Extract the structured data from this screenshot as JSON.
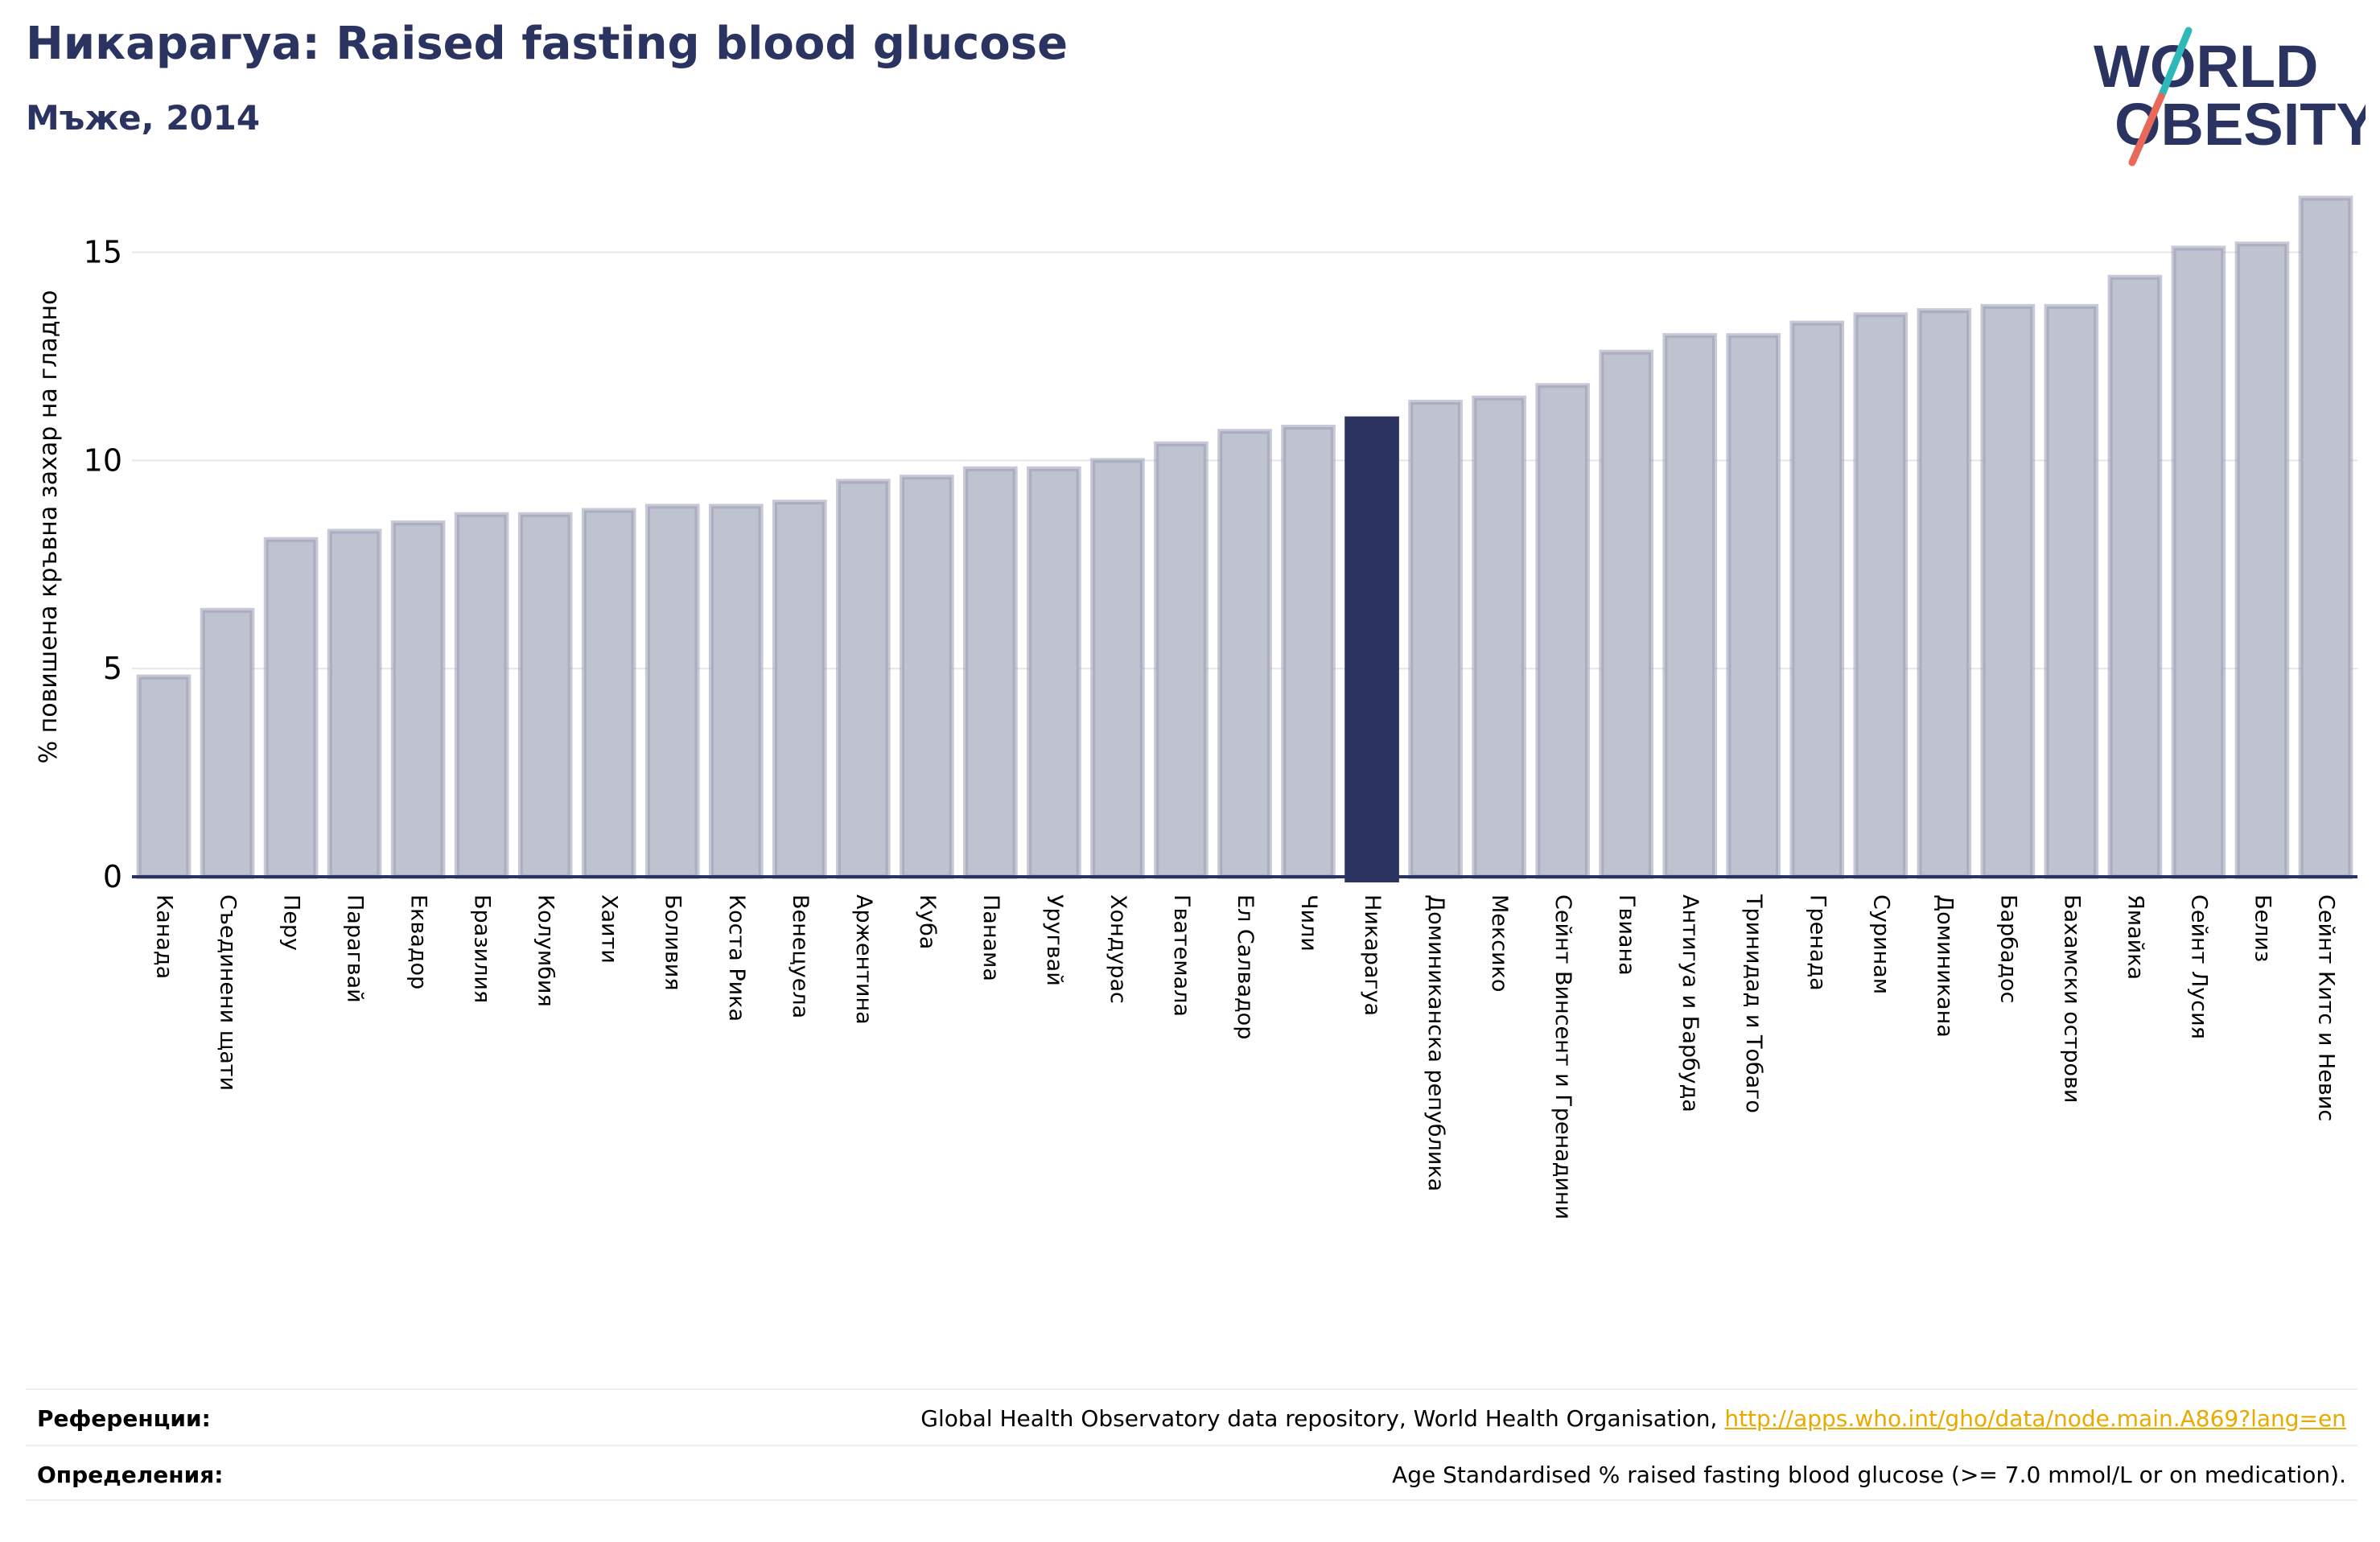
{
  "header": {
    "title": "Никарагуа: Raised fasting blood glucose",
    "subtitle": "Мъже, 2014"
  },
  "logo": {
    "line1": "WORLD",
    "line2": "OBESITY",
    "text_color": "#2b3461",
    "slash_color_top": "#2eb8b8",
    "slash_color_bottom": "#e8685a"
  },
  "colors": {
    "bar_default": "#bfc2cf",
    "bar_border": "#9a9db5",
    "bar_highlight": "#2b3461",
    "grid": "#e6e6e6",
    "axis": "#2b3461"
  },
  "chart_data": {
    "type": "bar",
    "ylabel": "% повишена кръвна захар на гладно",
    "ylim": [
      0,
      16.5
    ],
    "yticks": [
      0,
      5,
      10,
      15
    ],
    "grid": true,
    "highlight": "Никарагуа",
    "categories": [
      "Канада",
      "Съединени щати",
      "Перу",
      "Парагвай",
      "Еквадор",
      "Бразилия",
      "Колумбия",
      "Хаити",
      "Боливия",
      "Коста Рика",
      "Венецуела",
      "Аржентина",
      "Куба",
      "Панама",
      "Уругвай",
      "Хондурас",
      "Гватемала",
      "Ел Салвадор",
      "Чили",
      "Никарагуа",
      "Доминиканска република",
      "Мексико",
      "Сейнт Винсент и Гренадини",
      "Гвиана",
      "Антигуа и Барбуда",
      "Тринидад и Тобаго",
      "Гренада",
      "Суринам",
      "Доминикана",
      "Барбадос",
      "Бахамски острови",
      "Ямайка",
      "Сейнт Лусия",
      "Белиз",
      "Сейнт Китс и Невис"
    ],
    "values": [
      4.8,
      6.4,
      8.1,
      8.3,
      8.5,
      8.7,
      8.7,
      8.8,
      8.9,
      8.9,
      9.0,
      9.5,
      9.6,
      9.8,
      9.8,
      10.0,
      10.4,
      10.7,
      10.8,
      11.0,
      11.4,
      11.5,
      11.8,
      12.6,
      13.0,
      13.0,
      13.3,
      13.5,
      13.6,
      13.7,
      13.7,
      14.4,
      15.1,
      15.2,
      16.3
    ]
  },
  "references": {
    "label": "Референции:",
    "text": "Global Health Observatory data repository, World Health Organisation, ",
    "link": "http://apps.who.int/gho/data/node.main.A869?lang=en"
  },
  "definitions": {
    "label": "Определения:",
    "text": "Age Standardised % raised fasting blood glucose (>= 7.0 mmol/L or on medication)."
  }
}
